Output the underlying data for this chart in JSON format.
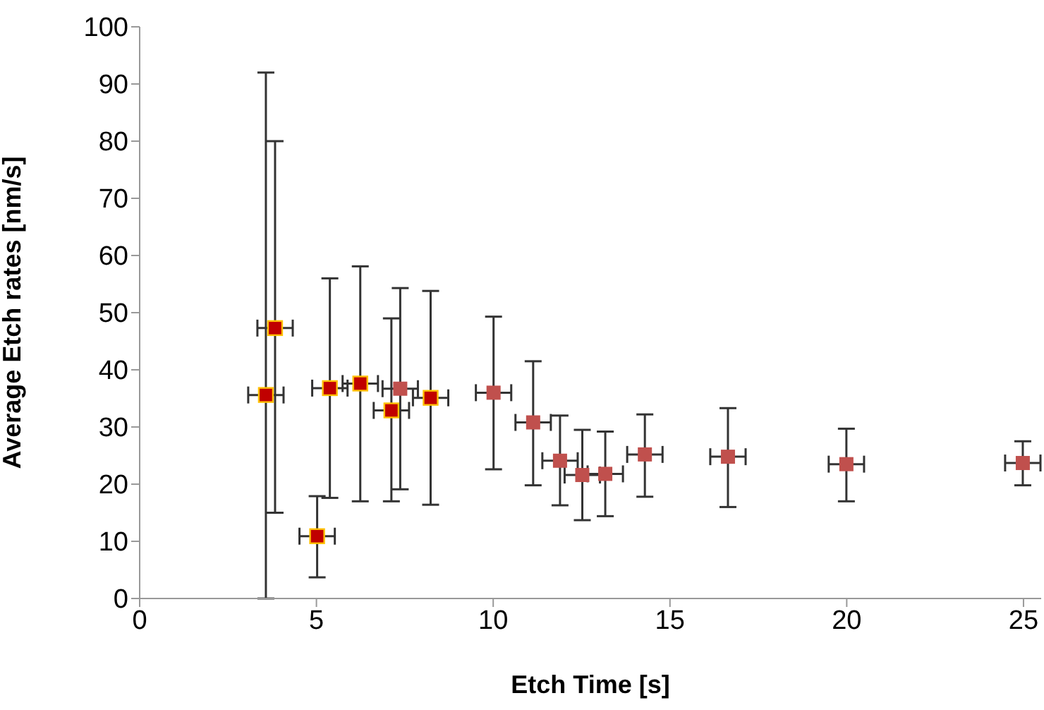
{
  "chart_data": {
    "type": "scatter",
    "xlabel": "Etch Time [s]",
    "ylabel": "Average Etch rates  [nm/s]",
    "xlim": [
      0,
      25.5
    ],
    "xticks": [
      0,
      5,
      10,
      15,
      20,
      25
    ],
    "ylim": [
      0,
      100
    ],
    "yticks": [
      0,
      10,
      20,
      30,
      40,
      50,
      60,
      70,
      80,
      90,
      100
    ],
    "grid": false,
    "legend": false,
    "marker": "square",
    "series": [
      {
        "color": "#c00000",
        "x": [
          3.57,
          3.83,
          5.02,
          5.38,
          6.24,
          7.12,
          8.23
        ],
        "values": [
          35.6,
          47.3,
          10.9,
          36.8,
          37.6,
          32.9,
          35.1
        ],
        "errors": [
          [
            0,
            92
          ],
          [
            15,
            80
          ],
          [
            3.7,
            17.9
          ],
          [
            17.6,
            56
          ],
          [
            17,
            58.1
          ],
          [
            17,
            49
          ],
          [
            16.4,
            53.8
          ]
        ],
        "xerrors": [
          0.5,
          0.5,
          0.5,
          0.5,
          0.5,
          0.5,
          0.5
        ]
      },
      {
        "color": "#c0504d",
        "x": [
          7.37,
          10.01,
          11.13,
          11.89,
          12.52,
          13.17,
          14.29,
          16.64,
          19.99,
          24.98
        ],
        "values": [
          36.7,
          36,
          30.8,
          24.1,
          21.6,
          21.8,
          25.2,
          24.8,
          23.5,
          23.7
        ],
        "errors": [
          [
            19.1,
            54.3
          ],
          [
            22.6,
            49.3
          ],
          [
            19.8,
            41.5
          ],
          [
            16.3,
            32
          ],
          [
            13.7,
            29.5
          ],
          [
            14.4,
            29.2
          ],
          [
            17.8,
            32.2
          ],
          [
            16,
            33.3
          ],
          [
            17,
            29.7
          ],
          [
            19.8,
            27.5
          ]
        ],
        "xerrors": [
          0.5,
          0.5,
          0.5,
          0.5,
          0.5,
          0.5,
          0.5,
          0.5,
          0.5,
          0.5
        ]
      }
    ]
  }
}
